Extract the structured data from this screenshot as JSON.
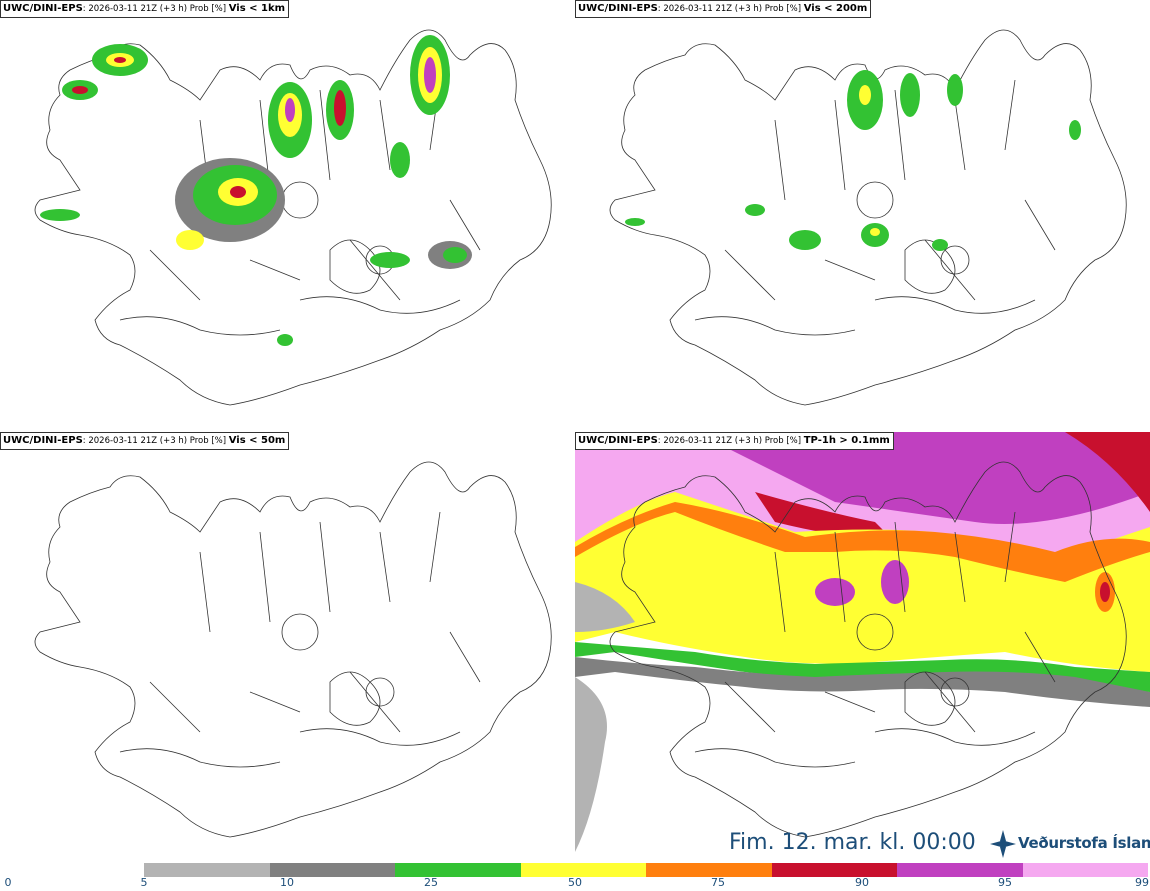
{
  "panels": [
    {
      "model": "UWC/DINI-EPS",
      "meta": "2026-03-11 21Z (+3 h) Prob [%]",
      "threshold": "Vis < 1km"
    },
    {
      "model": "UWC/DINI-EPS",
      "meta": "2026-03-11 21Z (+3 h) Prob [%]",
      "threshold": "Vis < 200m"
    },
    {
      "model": "UWC/DINI-EPS",
      "meta": "2026-03-11 21Z (+3 h) Prob [%]",
      "threshold": "Vis < 50m"
    },
    {
      "model": "UWC/DINI-EPS",
      "meta": "2026-03-11 21Z (+3 h) Prob [%]",
      "threshold": "TP-1h > 0.1mm"
    }
  ],
  "valid_time": "Fim. 12. mar. kl. 00:00",
  "logo_text": "Veðurstofa Íslands",
  "legend": {
    "ticks": [
      "0",
      "5",
      "10",
      "25",
      "50",
      "75",
      "90",
      "95",
      "99"
    ],
    "colors": [
      "#b3b3b3",
      "#808080",
      "#33c233",
      "#ffff33",
      "#ff7f0e",
      "#c8102e",
      "#c040c0",
      "#f5a8f0"
    ]
  }
}
